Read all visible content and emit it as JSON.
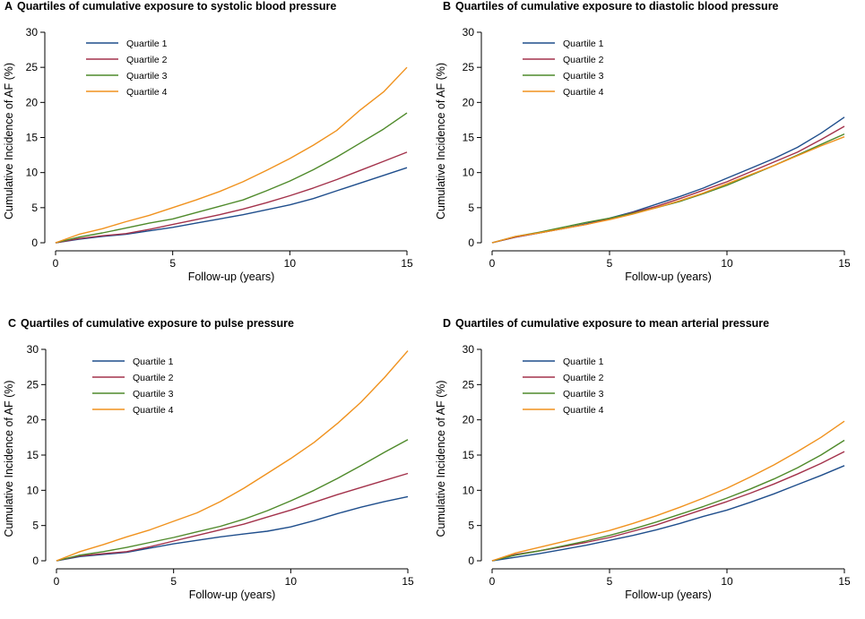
{
  "chart_data": [
    {
      "type": "line",
      "panel_letter": "A",
      "title": "Quartiles of cumulative exposure to systolic blood pressure",
      "xlabel": "Follow-up (years)",
      "ylabel": "Cumulative Incidence of AF (%)",
      "xlim": [
        0,
        15
      ],
      "ylim": [
        0,
        30
      ],
      "xticks": [
        0,
        5,
        10,
        15
      ],
      "yticks": [
        0,
        5,
        10,
        15,
        20,
        25,
        30
      ],
      "grid": false,
      "legend_position": "top-left",
      "x": [
        0,
        1,
        2,
        3,
        4,
        5,
        6,
        7,
        8,
        9,
        10,
        11,
        12,
        13,
        14,
        15
      ],
      "series": [
        {
          "name": "Quartile 1",
          "color": "#1f4e8c",
          "values": [
            0,
            0.5,
            0.9,
            1.2,
            1.7,
            2.2,
            2.8,
            3.4,
            4.0,
            4.7,
            5.4,
            6.3,
            7.4,
            8.5,
            9.6,
            10.7
          ]
        },
        {
          "name": "Quartile 2",
          "color": "#a3324b",
          "values": [
            0,
            0.6,
            1.0,
            1.3,
            1.9,
            2.6,
            3.3,
            4.0,
            4.8,
            5.7,
            6.7,
            7.8,
            9.0,
            10.3,
            11.6,
            12.9
          ]
        },
        {
          "name": "Quartile 3",
          "color": "#4f8a2b",
          "values": [
            0,
            0.8,
            1.4,
            2.1,
            2.8,
            3.4,
            4.3,
            5.2,
            6.1,
            7.4,
            8.8,
            10.4,
            12.2,
            14.2,
            16.2,
            18.5
          ]
        },
        {
          "name": "Quartile 4",
          "color": "#f0921e",
          "values": [
            0,
            1.2,
            2.0,
            3.0,
            3.9,
            5.0,
            6.1,
            7.3,
            8.7,
            10.3,
            12.0,
            13.9,
            16.0,
            18.9,
            21.5,
            25.0
          ]
        }
      ]
    },
    {
      "type": "line",
      "panel_letter": "B",
      "title": "Quartiles of cumulative exposure to diastolic blood pressure",
      "xlabel": "Follow-up (years)",
      "ylabel": "Cumulative Incidence of AF (%)",
      "xlim": [
        0,
        15
      ],
      "ylim": [
        0,
        30
      ],
      "xticks": [
        0,
        5,
        10,
        15
      ],
      "yticks": [
        0,
        5,
        10,
        15,
        20,
        25,
        30
      ],
      "grid": false,
      "legend_position": "top-left",
      "x": [
        0,
        1,
        2,
        3,
        4,
        5,
        6,
        7,
        8,
        9,
        10,
        11,
        12,
        13,
        14,
        15
      ],
      "series": [
        {
          "name": "Quartile 1",
          "color": "#1f4e8c",
          "values": [
            0,
            0.8,
            1.4,
            2.0,
            2.7,
            3.5,
            4.4,
            5.5,
            6.6,
            7.8,
            9.2,
            10.6,
            12.0,
            13.6,
            15.6,
            17.9
          ]
        },
        {
          "name": "Quartile 2",
          "color": "#a3324b",
          "values": [
            0,
            0.8,
            1.4,
            2.0,
            2.6,
            3.4,
            4.3,
            5.2,
            6.3,
            7.5,
            8.7,
            10.1,
            11.5,
            12.9,
            14.7,
            16.6
          ]
        },
        {
          "name": "Quartile 3",
          "color": "#4f8a2b",
          "values": [
            0,
            0.9,
            1.5,
            2.2,
            2.9,
            3.5,
            4.2,
            5.0,
            5.9,
            7.0,
            8.2,
            9.6,
            11.0,
            12.5,
            14.0,
            15.5
          ]
        },
        {
          "name": "Quartile 4",
          "color": "#f0921e",
          "values": [
            0,
            0.9,
            1.4,
            2.0,
            2.6,
            3.3,
            4.1,
            5.0,
            6.0,
            7.1,
            8.4,
            9.7,
            11.0,
            12.4,
            13.8,
            15.1
          ]
        }
      ]
    },
    {
      "type": "line",
      "panel_letter": "C",
      "title": "Quartiles of cumulative exposure to pulse pressure",
      "xlabel": "Follow-up (years)",
      "ylabel": "Cumulative Incidence of AF (%)",
      "xlim": [
        0,
        15
      ],
      "ylim": [
        0,
        30
      ],
      "xticks": [
        0,
        5,
        10,
        15
      ],
      "yticks": [
        0,
        5,
        10,
        15,
        20,
        25,
        30
      ],
      "grid": false,
      "legend_position": "top-left",
      "x": [
        0,
        1,
        2,
        3,
        4,
        5,
        6,
        7,
        8,
        9,
        10,
        11,
        12,
        13,
        14,
        15
      ],
      "series": [
        {
          "name": "Quartile 1",
          "color": "#1f4e8c",
          "values": [
            0,
            0.6,
            0.9,
            1.2,
            1.8,
            2.4,
            2.9,
            3.4,
            3.8,
            4.2,
            4.8,
            5.7,
            6.7,
            7.6,
            8.4,
            9.1
          ]
        },
        {
          "name": "Quartile 2",
          "color": "#a3324b",
          "values": [
            0,
            0.7,
            1.0,
            1.3,
            2.0,
            2.8,
            3.6,
            4.4,
            5.2,
            6.2,
            7.2,
            8.3,
            9.4,
            10.4,
            11.4,
            12.4
          ]
        },
        {
          "name": "Quartile 3",
          "color": "#4f8a2b",
          "values": [
            0,
            0.8,
            1.3,
            1.9,
            2.6,
            3.3,
            4.1,
            4.9,
            5.9,
            7.1,
            8.5,
            10.0,
            11.7,
            13.5,
            15.4,
            17.2
          ]
        },
        {
          "name": "Quartile 4",
          "color": "#f0921e",
          "values": [
            0,
            1.3,
            2.3,
            3.4,
            4.4,
            5.6,
            6.8,
            8.4,
            10.3,
            12.4,
            14.5,
            16.8,
            19.5,
            22.5,
            26.0,
            29.8
          ]
        }
      ]
    },
    {
      "type": "line",
      "panel_letter": "D",
      "title": "Quartiles of cumulative exposure to mean arterial pressure",
      "xlabel": "Follow-up (years)",
      "ylabel": "Cumulative Incidence of AF (%)",
      "xlim": [
        0,
        15
      ],
      "ylim": [
        0,
        30
      ],
      "xticks": [
        0,
        5,
        10,
        15
      ],
      "yticks": [
        0,
        5,
        10,
        15,
        20,
        25,
        30
      ],
      "grid": false,
      "legend_position": "top-left",
      "x": [
        0,
        1,
        2,
        3,
        4,
        5,
        6,
        7,
        8,
        9,
        10,
        11,
        12,
        13,
        14,
        15
      ],
      "series": [
        {
          "name": "Quartile 1",
          "color": "#1f4e8c",
          "values": [
            0,
            0.5,
            1.0,
            1.6,
            2.2,
            2.9,
            3.6,
            4.4,
            5.3,
            6.3,
            7.2,
            8.3,
            9.5,
            10.8,
            12.1,
            13.5
          ]
        },
        {
          "name": "Quartile 2",
          "color": "#a3324b",
          "values": [
            0,
            0.9,
            1.4,
            2.0,
            2.6,
            3.3,
            4.2,
            5.1,
            6.2,
            7.3,
            8.4,
            9.6,
            10.9,
            12.3,
            13.8,
            15.5
          ]
        },
        {
          "name": "Quartile 3",
          "color": "#4f8a2b",
          "values": [
            0,
            0.8,
            1.4,
            2.1,
            2.8,
            3.6,
            4.5,
            5.5,
            6.6,
            7.7,
            8.9,
            10.2,
            11.6,
            13.2,
            15.0,
            17.1
          ]
        },
        {
          "name": "Quartile 4",
          "color": "#f0921e",
          "values": [
            0,
            1.1,
            1.9,
            2.7,
            3.5,
            4.3,
            5.3,
            6.4,
            7.6,
            8.9,
            10.3,
            11.9,
            13.6,
            15.5,
            17.5,
            19.8
          ]
        }
      ]
    }
  ]
}
